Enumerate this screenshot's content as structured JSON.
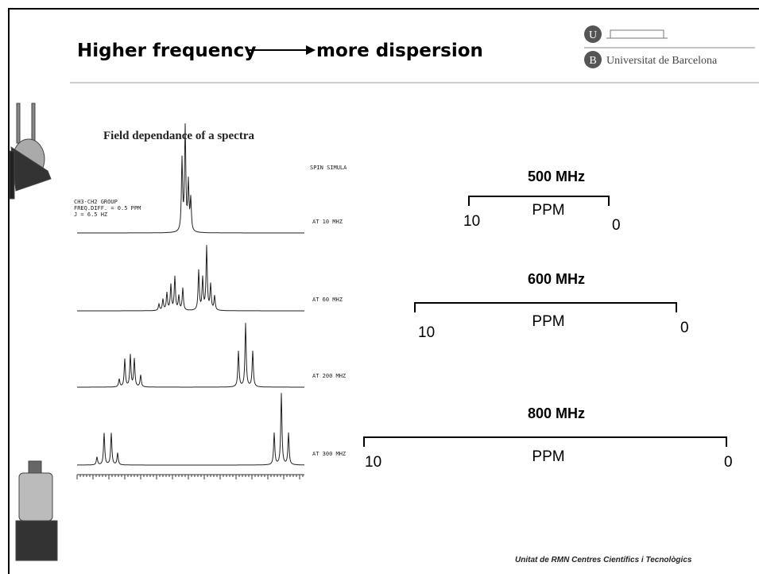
{
  "header": {
    "title_left": "Higher frequency",
    "title_right": "more dispersion",
    "logo": {
      "letter_top": "U",
      "letter_bottom": "B",
      "name": "Universitat de Barcelona"
    }
  },
  "figure": {
    "title": "Field dependance of a spectra",
    "program": "SPIN SIMULA",
    "notes": [
      "CH3-CH2 GROUP",
      "FREQ.DIFF. = 0.5 PPM",
      "J = 6.5 HZ"
    ],
    "traces": [
      "AT 10 MHZ",
      "AT 60 MHZ",
      "AT 200 MHZ",
      "AT 300 MHZ"
    ]
  },
  "scales": [
    {
      "field": "500 MHz",
      "left": "10",
      "unit": "PPM",
      "right": "0"
    },
    {
      "field": "600 MHz",
      "left": "10",
      "unit": "PPM",
      "right": "0"
    },
    {
      "field": "800 MHz",
      "left": "10",
      "unit": "PPM",
      "right": "0"
    }
  ],
  "footer": "Unitat de RMN  Centres Científics i Tecnològics"
}
